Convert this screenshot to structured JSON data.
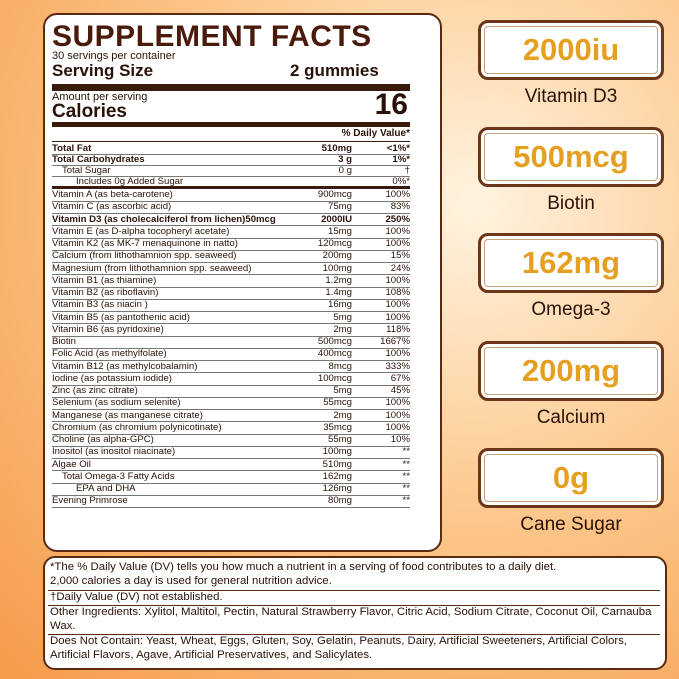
{
  "header": {
    "title": "SUPPLEMENT FACTS",
    "servings": "30 servings per container",
    "serving_size_label": "Serving Size",
    "serving_size": "2 gummies",
    "amount_per_serving": "Amount per serving",
    "calories_label": "Calories",
    "calories": "16",
    "dv_header": "% Daily Value*"
  },
  "table": {
    "rows": [
      [
        "Total Fat",
        "510mg",
        "<1%*"
      ],
      [
        "Total Carbohydrates",
        "3 g",
        "1%*"
      ],
      [
        "Total Sugar",
        "0 g",
        "†"
      ],
      [
        "Includes 0g Added Sugar",
        "",
        "0%*"
      ],
      [
        "Vitamin A (as beta-carotene)",
        "900mcg",
        "100%"
      ],
      [
        "Vitamin C (as ascorbic acid)",
        "75mg",
        "83%"
      ],
      [
        "Vitamin D3 (as cholecalciferol from lichen)50mcg",
        "2000IU",
        "250%"
      ],
      [
        "Vitamin E (as D-alpha tocopheryl acetate)",
        "15mg",
        "100%"
      ],
      [
        "Vitamin K2 (as MK-7 menaquinone in natto)",
        "120mcg",
        "100%"
      ],
      [
        "Calcium (from lithothamnion spp. seaweed)",
        "200mg",
        "15%"
      ],
      [
        "Magnesium (from lithothamnion spp. seaweed)",
        "100mg",
        "24%"
      ],
      [
        "Vitamin B1 (as thiamine)",
        "1.2mg",
        "100%"
      ],
      [
        "Vitamin B2 (as riboflavin)",
        "1.4mg",
        "108%"
      ],
      [
        "Vitamin B3 (as niacin )",
        "16mg",
        "100%"
      ],
      [
        "Vitamin B5 (as pantothenic acid)",
        "5mg",
        "100%"
      ],
      [
        "Vitamin B6 (as pyridoxine)",
        "2mg",
        "118%"
      ],
      [
        "Biotin",
        "500mcg",
        "1667%"
      ],
      [
        "Folic Acid (as methylfolate)",
        "400mcg",
        "100%"
      ],
      [
        "Vitamin B12 (as methylcobalamin)",
        "8mcg",
        "333%"
      ],
      [
        "Iodine (as potassium iodide)",
        "100mcg",
        "67%"
      ],
      [
        "Zinc (as zinc citrate)",
        "5mg",
        "45%"
      ],
      [
        "Selenium (as sodium selenite)",
        "55mcg",
        "100%"
      ],
      [
        "Manganese (as manganese citrate)",
        "2mg",
        "100%"
      ],
      [
        "Chromium (as chromium polynicotinate)",
        "35mcg",
        "100%"
      ],
      [
        "Choline (as alpha-GPC)",
        "55mg",
        "10%"
      ],
      [
        "Inositol (as inositol niacinate)",
        "100mg",
        "**"
      ],
      [
        "Algae Oil",
        "510mg",
        "**"
      ],
      [
        "Total Omega-3 Fatty Acids",
        "162mg",
        "**"
      ],
      [
        "EPA and DHA",
        "126mg",
        "**"
      ],
      [
        "Evening Primrose",
        "80mg",
        "**"
      ]
    ]
  },
  "badges": [
    {
      "value": "2000iu",
      "label": "Vitamin D3"
    },
    {
      "value": "500mcg",
      "label": "Biotin"
    },
    {
      "value": "162mg",
      "label": "Omega-3"
    },
    {
      "value": "200mg",
      "label": "Calcium"
    },
    {
      "value": "0g",
      "label": "Cane Sugar"
    }
  ],
  "footer": {
    "dv_note": "*The % Daily Value (DV) tells you how much a nutrient in a serving of food contributes to a daily diet.",
    "calorie_note": "2,000 calories a day is used for general nutrition advice.",
    "dagger_note": "†Daily Value (DV) not established.",
    "other_ingredients": "Other Ingredients: Xylitol, Maltitol, Pectin, Natural Strawberry Flavor, Citric Acid, Sodium Citrate, Coconut Oil, Carnauba Wax.",
    "does_not_contain": "Does Not Contain: Yeast, Wheat, Eggs, Gluten, Soy, Gelatin, Peanuts, Dairy, Artificial Sweeteners, Artificial Colors, Artificial Flavors, Agave, Artificial Preservatives, and Salicylates."
  }
}
